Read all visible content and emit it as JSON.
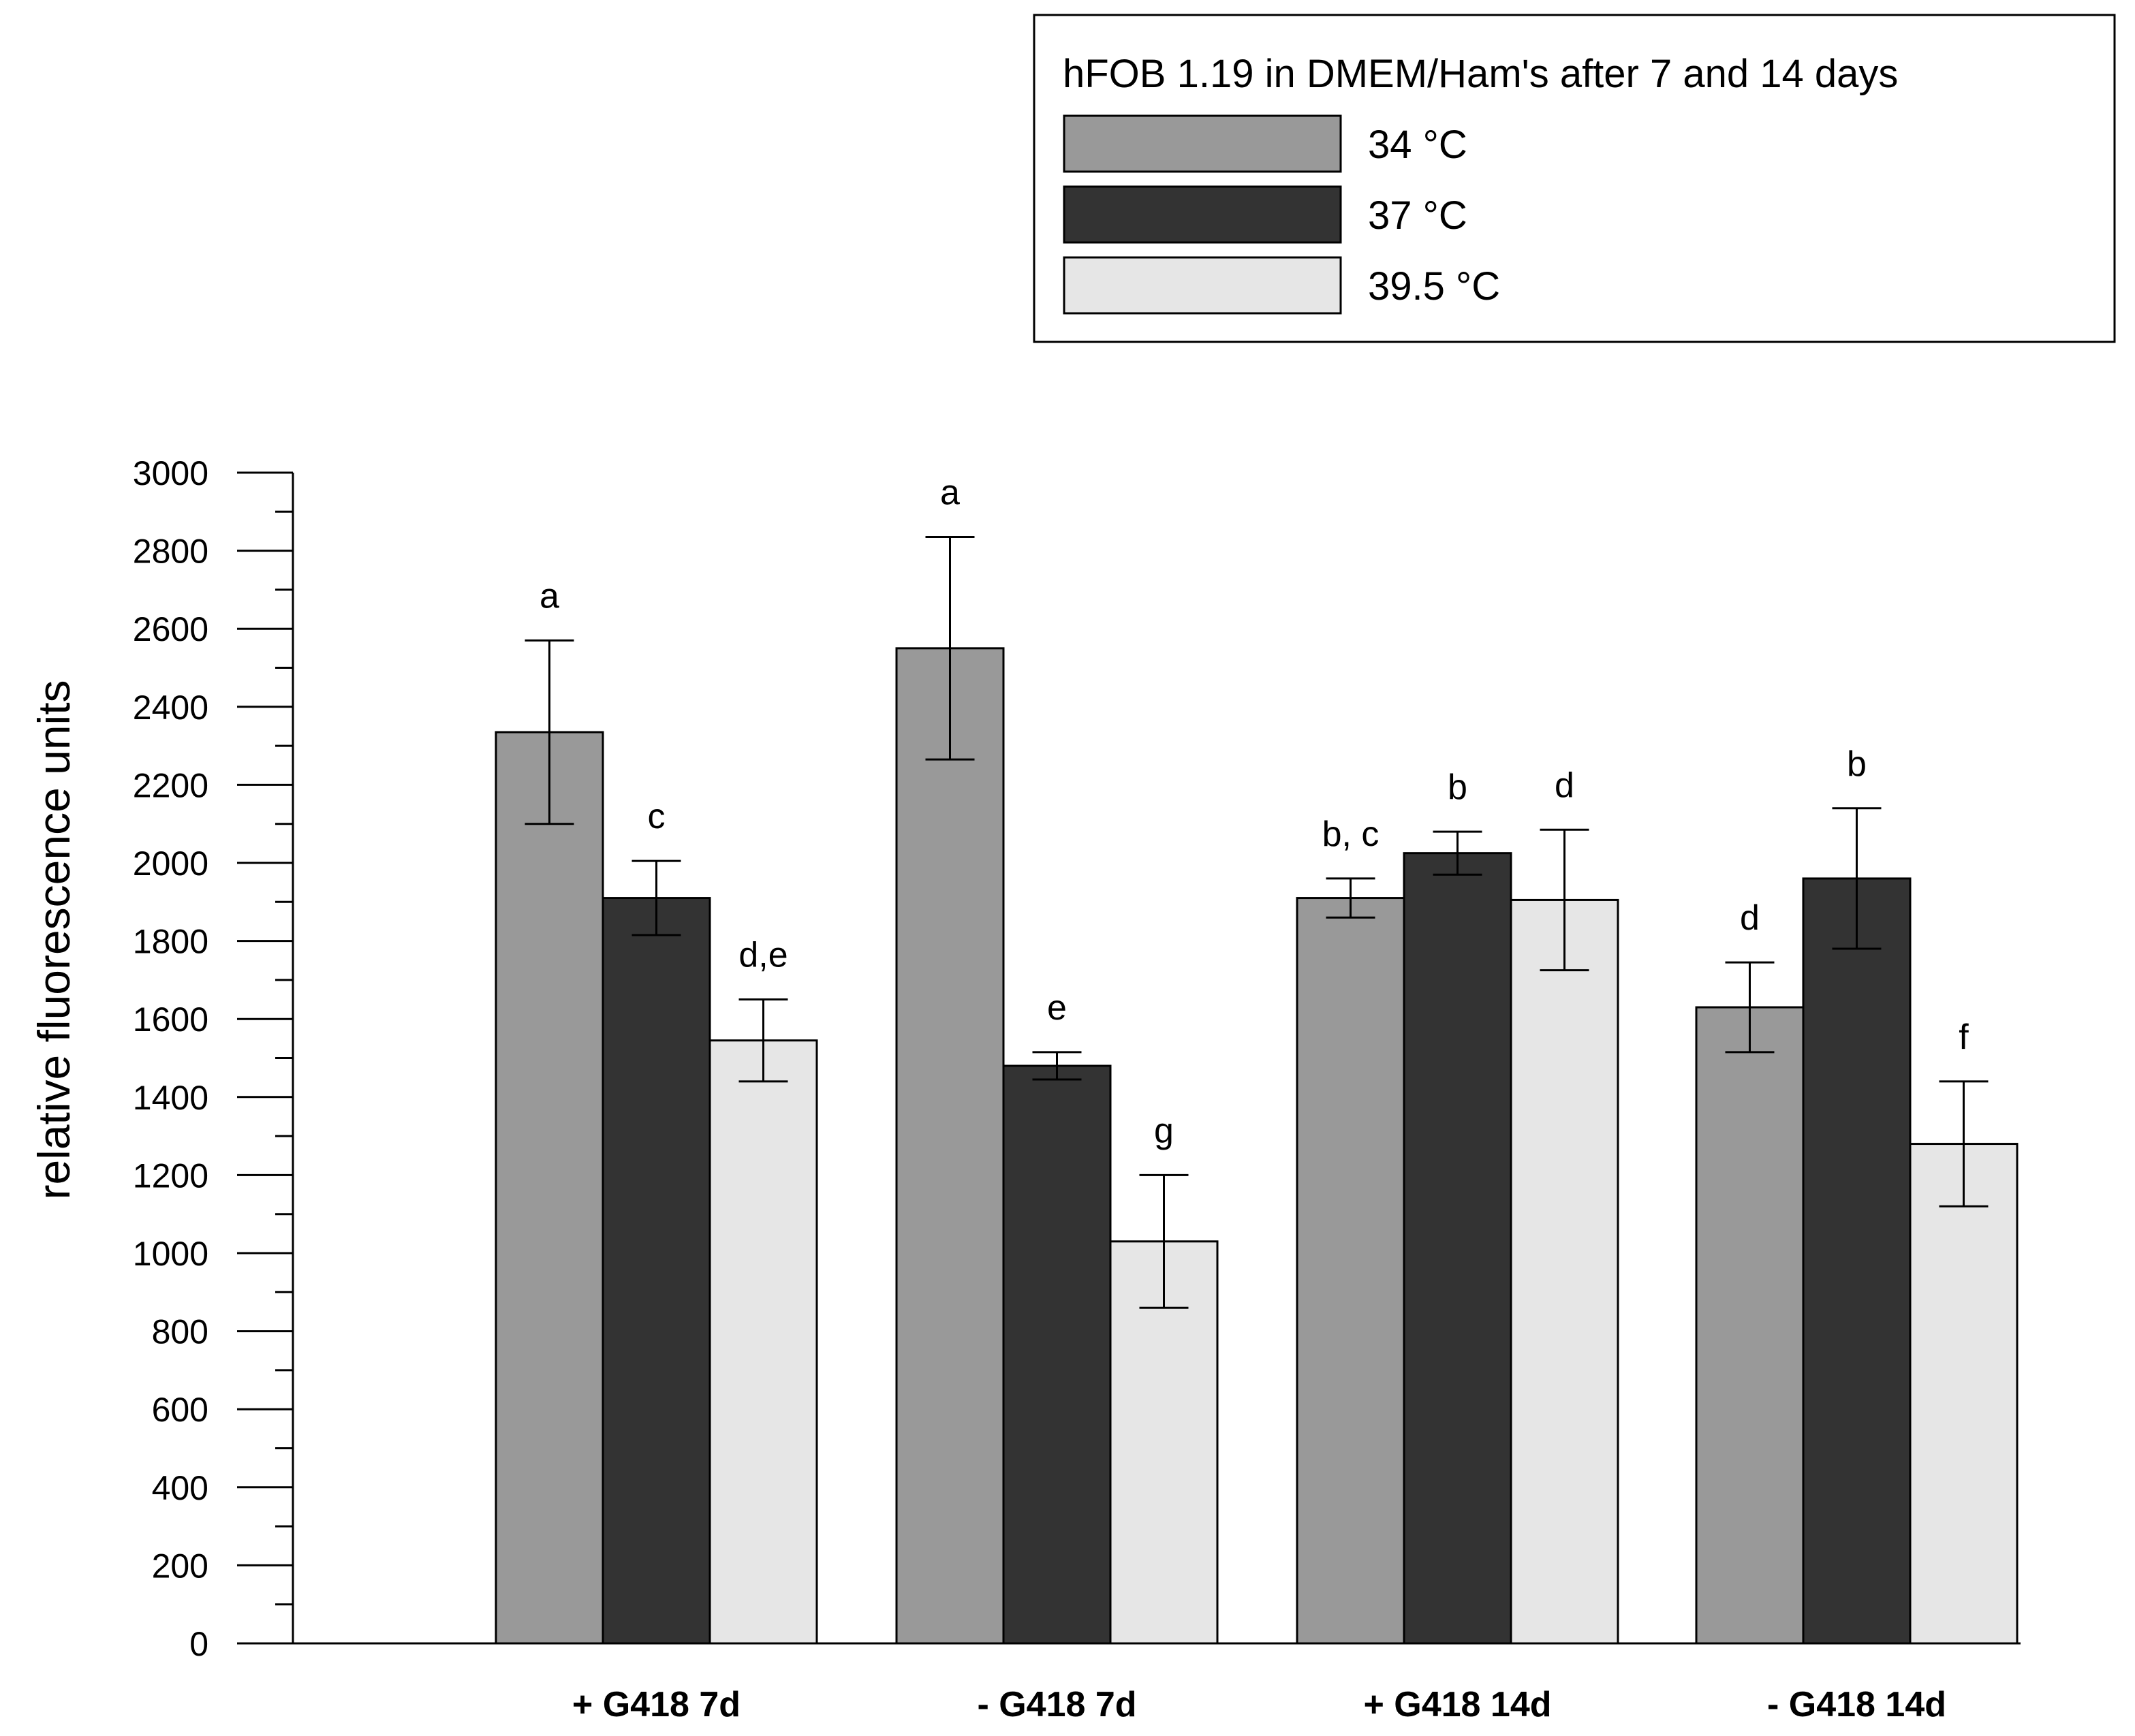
{
  "chart_data": {
    "type": "bar",
    "title": "hFOB 1.19 in DMEM/Ham's after 7 and 14 days",
    "xlabel": "",
    "ylabel": "relative fluorescence units",
    "ylim": [
      0,
      3000
    ],
    "yticks": [
      "0",
      "200",
      "400",
      "600",
      "800",
      "1000",
      "1200",
      "1400",
      "1600",
      "1800",
      "2000",
      "2200",
      "2400",
      "2600",
      "2800",
      "3000"
    ],
    "categories": [
      "+ G418 7d",
      "- G418 7d",
      "+ G418 14d",
      "- G418 14d"
    ],
    "legend_position": "top-right",
    "series": [
      {
        "name": "34 °C",
        "color": "#999999",
        "values": [
          2335,
          2550,
          1910,
          1630
        ],
        "errors": [
          235,
          285,
          50,
          115
        ],
        "labels": [
          "a",
          "a",
          "b, c",
          "d"
        ]
      },
      {
        "name": "37 °C",
        "color": "#333333",
        "values": [
          1910,
          1480,
          2025,
          1960
        ],
        "errors": [
          95,
          35,
          55,
          180
        ],
        "labels": [
          "c",
          "e",
          "b",
          "b"
        ]
      },
      {
        "name": "39.5 °C",
        "color": "#e6e6e6",
        "values": [
          1545,
          1030,
          1905,
          1280
        ],
        "errors": [
          105,
          170,
          180,
          160
        ],
        "labels": [
          "d,e",
          "g",
          "d",
          "f"
        ]
      }
    ]
  }
}
